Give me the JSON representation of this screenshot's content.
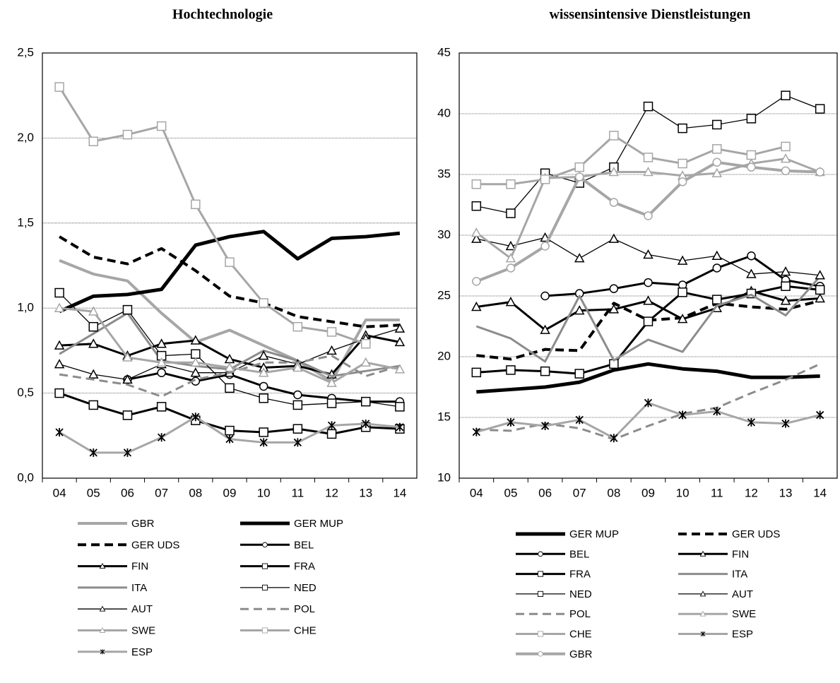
{
  "chart_data": [
    {
      "type": "line",
      "title": "Hochtechnologie",
      "categories": [
        "04",
        "05",
        "06",
        "07",
        "08",
        "09",
        "10",
        "11",
        "12",
        "13",
        "14"
      ],
      "ylim": [
        0,
        2.5
      ],
      "yticks": [
        {
          "value": 0,
          "label": "0,0"
        },
        {
          "value": 0.5,
          "label": "0,5"
        },
        {
          "value": 1,
          "label": "1,0"
        },
        {
          "value": 1.5,
          "label": "1,5"
        },
        {
          "value": 2,
          "label": "2,0"
        },
        {
          "value": 2.5,
          "label": "2,5"
        }
      ],
      "grid": true,
      "series": [
        {
          "name": "GBR",
          "color": "#a6a6a6",
          "line_width": 4,
          "dash": false,
          "marker": "none",
          "values": [
            1.28,
            1.2,
            1.16,
            0.97,
            0.8,
            0.87,
            0.78,
            0.69,
            0.57,
            0.93,
            0.93
          ]
        },
        {
          "name": "GER MUP",
          "color": "#000000",
          "line_width": 5,
          "dash": false,
          "marker": "none",
          "values": [
            0.98,
            1.07,
            1.08,
            1.11,
            1.37,
            1.42,
            1.45,
            1.29,
            1.41,
            1.42,
            1.44
          ]
        },
        {
          "name": "GER UDS",
          "color": "#000000",
          "line_width": 4,
          "dash": true,
          "marker": "none",
          "values": [
            1.42,
            1.3,
            1.26,
            1.35,
            1.22,
            1.07,
            1.03,
            0.95,
            0.92,
            0.89,
            0.9
          ]
        },
        {
          "name": "BEL",
          "color": "#000000",
          "line_width": 3,
          "dash": false,
          "marker": "circle",
          "values": [
            null,
            null,
            0.58,
            0.62,
            0.57,
            0.61,
            0.54,
            0.49,
            0.47,
            0.45,
            0.45
          ]
        },
        {
          "name": "FIN",
          "color": "#000000",
          "line_width": 3,
          "dash": false,
          "marker": "triangle",
          "values": [
            0.78,
            0.79,
            0.72,
            0.79,
            0.81,
            0.7,
            0.65,
            0.66,
            0.61,
            0.84,
            0.8
          ]
        },
        {
          "name": "FRA",
          "color": "#000000",
          "line_width": 3,
          "dash": false,
          "marker": "square",
          "values": [
            0.5,
            0.43,
            0.37,
            0.42,
            0.34,
            0.28,
            0.27,
            0.29,
            0.26,
            0.3,
            0.29
          ]
        },
        {
          "name": "ITA",
          "color": "#8c8c8c",
          "line_width": 3,
          "dash": false,
          "marker": "none",
          "values": [
            0.73,
            0.85,
            0.97,
            0.69,
            0.66,
            0.64,
            0.75,
            0.69,
            0.6,
            0.63,
            0.66
          ]
        },
        {
          "name": "NED",
          "color": "#000000",
          "line_width": 1.3,
          "dash": false,
          "marker": "square",
          "values": [
            1.09,
            0.89,
            0.99,
            0.72,
            0.73,
            0.53,
            0.47,
            0.43,
            0.44,
            0.45,
            0.42
          ]
        },
        {
          "name": "AUT",
          "color": "#000000",
          "line_width": 1.3,
          "dash": false,
          "marker": "triangle",
          "values": [
            0.67,
            0.61,
            0.58,
            0.67,
            0.62,
            0.62,
            0.72,
            0.67,
            0.75,
            0.82,
            0.88
          ]
        },
        {
          "name": "POL",
          "color": "#8c8c8c",
          "line_width": 3,
          "dash": true,
          "marker": "none",
          "values": [
            0.61,
            0.58,
            0.55,
            0.48,
            0.58,
            0.62,
            0.68,
            0.68,
            0.72,
            0.6,
            0.66
          ]
        },
        {
          "name": "SWE",
          "color": "#a6a6a6",
          "line_width": 3,
          "dash": false,
          "marker": "triangle",
          "values": [
            1.0,
            0.98,
            0.71,
            0.68,
            0.68,
            0.65,
            0.62,
            0.65,
            0.56,
            0.68,
            0.64
          ]
        },
        {
          "name": "CHE",
          "color": "#a6a6a6",
          "line_width": 3,
          "dash": false,
          "marker": "square",
          "values": [
            2.3,
            1.98,
            2.02,
            2.07,
            1.61,
            1.27,
            1.03,
            0.89,
            0.86,
            0.79,
            null
          ]
        },
        {
          "name": "ESP",
          "color": "#a6a6a6",
          "line_width": 3,
          "dash": false,
          "marker": "star",
          "values": [
            0.27,
            0.15,
            0.15,
            0.24,
            0.36,
            0.23,
            0.21,
            0.21,
            0.31,
            0.32,
            0.3
          ]
        }
      ]
    },
    {
      "type": "line",
      "title": "wissensintensive Dienstleistungen",
      "categories": [
        "04",
        "05",
        "06",
        "07",
        "08",
        "09",
        "10",
        "11",
        "12",
        "13",
        "14"
      ],
      "ylim": [
        10,
        45
      ],
      "yticks": [
        10,
        15,
        20,
        25,
        30,
        35,
        40,
        45
      ],
      "grid": true,
      "series": [
        {
          "name": "GER MUP",
          "color": "#000000",
          "line_width": 5,
          "dash": false,
          "marker": "none",
          "values": [
            17.1,
            17.3,
            17.5,
            17.9,
            18.9,
            19.4,
            19.0,
            18.8,
            18.3,
            18.3,
            18.4
          ]
        },
        {
          "name": "GER UDS",
          "color": "#000000",
          "line_width": 4,
          "dash": true,
          "marker": "none",
          "values": [
            20.1,
            19.8,
            20.6,
            20.5,
            24.4,
            23.0,
            23.2,
            24.4,
            24.1,
            23.9,
            24.6
          ]
        },
        {
          "name": "BEL",
          "color": "#000000",
          "line_width": 3,
          "dash": false,
          "marker": "circle",
          "values": [
            null,
            null,
            25.0,
            25.2,
            25.6,
            26.1,
            25.9,
            27.3,
            28.3,
            26.3,
            25.8
          ]
        },
        {
          "name": "FIN",
          "color": "#000000",
          "line_width": 3,
          "dash": false,
          "marker": "triangle",
          "values": [
            24.1,
            24.5,
            22.2,
            23.8,
            23.9,
            24.6,
            23.1,
            24.0,
            25.4,
            24.6,
            24.8
          ]
        },
        {
          "name": "FRA",
          "color": "#000000",
          "line_width": 3,
          "dash": false,
          "marker": "square",
          "values": [
            18.7,
            18.9,
            18.8,
            18.6,
            19.4,
            22.9,
            25.3,
            24.7,
            25.2,
            25.8,
            25.5
          ]
        },
        {
          "name": "ITA",
          "color": "#8c8c8c",
          "line_width": 3,
          "dash": false,
          "marker": "none",
          "values": [
            22.5,
            21.5,
            19.6,
            25.0,
            19.7,
            21.4,
            20.4,
            24.2,
            25.1,
            23.4,
            26.6
          ]
        },
        {
          "name": "NED",
          "color": "#000000",
          "line_width": 1.3,
          "dash": false,
          "marker": "square",
          "values": [
            32.4,
            31.8,
            35.1,
            34.3,
            35.6,
            40.6,
            38.8,
            39.1,
            39.6,
            41.5,
            40.4
          ]
        },
        {
          "name": "AUT",
          "color": "#000000",
          "line_width": 1.3,
          "dash": false,
          "marker": "triangle",
          "values": [
            29.7,
            29.1,
            29.8,
            28.1,
            29.7,
            28.4,
            27.9,
            28.3,
            26.8,
            27.0,
            26.7
          ]
        },
        {
          "name": "POL",
          "color": "#8c8c8c",
          "line_width": 3,
          "dash": true,
          "marker": "none",
          "values": [
            14.0,
            13.9,
            14.5,
            14.1,
            13.2,
            14.3,
            15.3,
            15.8,
            17.0,
            18.1,
            19.4
          ]
        },
        {
          "name": "SWE",
          "color": "#a6a6a6",
          "line_width": 3,
          "dash": false,
          "marker": "triangle",
          "values": [
            30.2,
            28.1,
            34.7,
            34.8,
            35.2,
            35.2,
            34.9,
            35.1,
            35.9,
            36.3,
            35.2
          ]
        },
        {
          "name": "CHE",
          "color": "#a6a6a6",
          "line_width": 3,
          "dash": false,
          "marker": "square",
          "values": [
            34.2,
            34.2,
            34.6,
            35.6,
            38.2,
            36.4,
            35.9,
            37.1,
            36.6,
            37.3,
            null
          ]
        },
        {
          "name": "ESP",
          "color": "#a6a6a6",
          "line_width": 3,
          "dash": false,
          "marker": "star",
          "values": [
            13.8,
            14.6,
            14.3,
            14.8,
            13.3,
            16.2,
            15.2,
            15.5,
            14.6,
            14.5,
            15.2
          ]
        },
        {
          "name": "GBR",
          "color": "#a6a6a6",
          "line_width": 4,
          "dash": false,
          "marker": "circle",
          "values": [
            26.2,
            27.3,
            29.1,
            34.8,
            32.7,
            31.6,
            34.4,
            36.0,
            35.6,
            35.3,
            35.2
          ]
        }
      ]
    }
  ]
}
